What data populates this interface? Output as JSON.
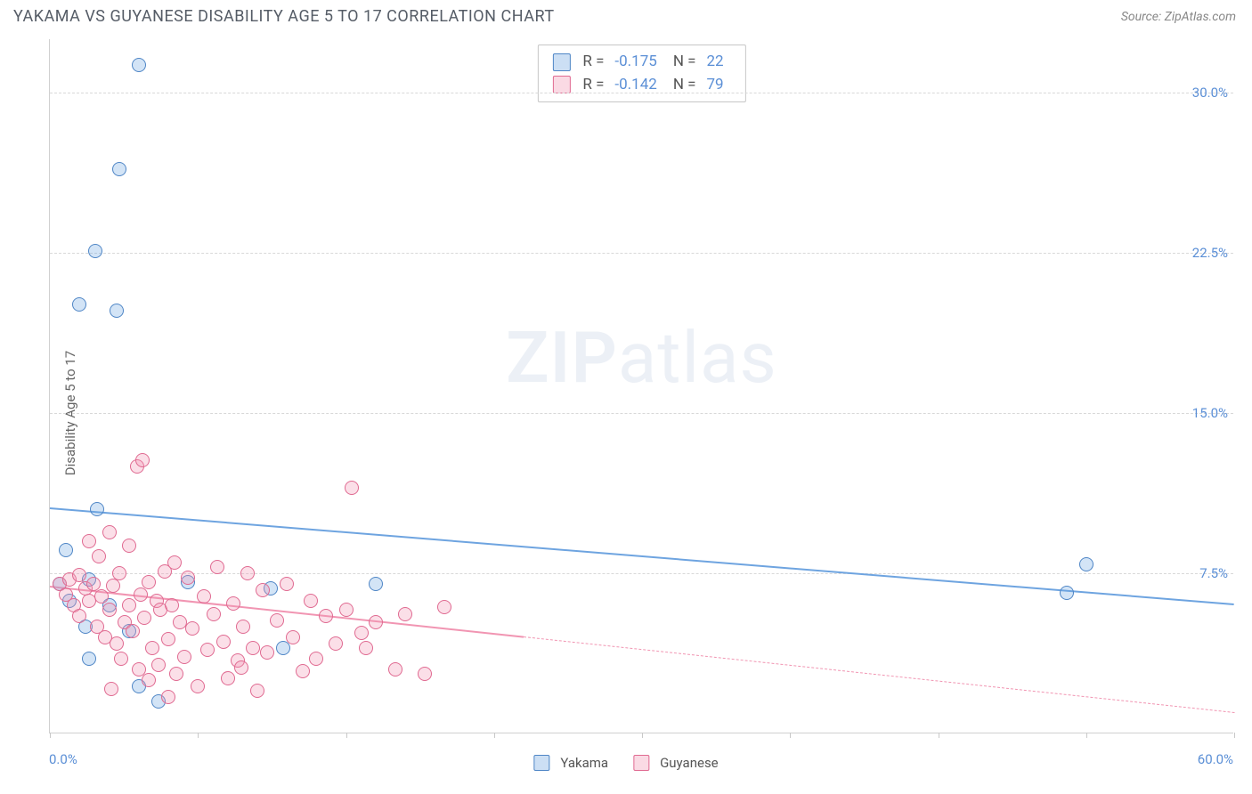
{
  "header": {
    "title": "YAKAMA VS GUYANESE DISABILITY AGE 5 TO 17 CORRELATION CHART",
    "source": "Source: ZipAtlas.com"
  },
  "watermark": {
    "bold": "ZIP",
    "rest": "atlas"
  },
  "chart": {
    "type": "scatter",
    "ylabel": "Disability Age 5 to 17",
    "xlim": [
      0,
      60
    ],
    "ylim": [
      0,
      32.5
    ],
    "x_min_label": "0.0%",
    "x_max_label": "60.0%",
    "y_ticks": [
      7.5,
      15.0,
      22.5,
      30.0
    ],
    "y_tick_labels": [
      "7.5%",
      "15.0%",
      "22.5%",
      "30.0%"
    ],
    "x_tick_marks": [
      0,
      7.5,
      15,
      22.5,
      30,
      37.5,
      45,
      52.5,
      60
    ],
    "grid_color": "#d8d8d8",
    "axis_color": "#d0d0d0",
    "tick_label_color": "#5b8fd6",
    "axis_zero_color": "#5b8fd6",
    "background_color": "#ffffff",
    "marker_radius": 8,
    "marker_border_width": 1.5,
    "marker_fill_opacity": 0.3,
    "series": [
      {
        "name": "Yakama",
        "color": "#6ea4e0",
        "border_color": "#4f86c6",
        "R": "-0.175",
        "N": "22",
        "trend": {
          "x1": 0,
          "y1": 10.6,
          "x2": 60,
          "y2": 6.1,
          "solid_until_x": 60,
          "width_solid": 2
        },
        "points": [
          [
            4.5,
            31.3
          ],
          [
            3.5,
            26.4
          ],
          [
            2.3,
            22.6
          ],
          [
            1.5,
            20.1
          ],
          [
            3.4,
            19.8
          ],
          [
            2.4,
            10.5
          ],
          [
            0.8,
            8.6
          ],
          [
            2.0,
            7.2
          ],
          [
            7.0,
            7.1
          ],
          [
            11.2,
            6.8
          ],
          [
            16.5,
            7.0
          ],
          [
            3.0,
            6.0
          ],
          [
            1.0,
            6.2
          ],
          [
            4.0,
            4.8
          ],
          [
            2.0,
            3.5
          ],
          [
            4.5,
            2.2
          ],
          [
            5.5,
            1.5
          ],
          [
            11.8,
            4.0
          ],
          [
            52.5,
            7.9
          ],
          [
            51.5,
            6.6
          ],
          [
            0.5,
            7.0
          ],
          [
            1.8,
            5.0
          ]
        ]
      },
      {
        "name": "Guyanese",
        "color": "#f195b2",
        "border_color": "#e06a91",
        "R": "-0.142",
        "N": "79",
        "trend": {
          "x1": 0,
          "y1": 6.9,
          "x2": 60,
          "y2": 1.0,
          "solid_until_x": 24,
          "width_solid": 2,
          "width_dash": 1
        },
        "points": [
          [
            0.5,
            7.0
          ],
          [
            0.8,
            6.5
          ],
          [
            1.0,
            7.2
          ],
          [
            1.2,
            6.0
          ],
          [
            1.5,
            7.4
          ],
          [
            1.5,
            5.5
          ],
          [
            1.8,
            6.8
          ],
          [
            2.0,
            6.2
          ],
          [
            2.0,
            9.0
          ],
          [
            2.2,
            7.0
          ],
          [
            2.4,
            5.0
          ],
          [
            2.5,
            8.3
          ],
          [
            2.6,
            6.4
          ],
          [
            2.8,
            4.5
          ],
          [
            3.0,
            5.8
          ],
          [
            3.0,
            9.4
          ],
          [
            3.2,
            6.9
          ],
          [
            3.4,
            4.2
          ],
          [
            3.5,
            7.5
          ],
          [
            3.6,
            3.5
          ],
          [
            3.8,
            5.2
          ],
          [
            4.0,
            6.0
          ],
          [
            4.0,
            8.8
          ],
          [
            4.2,
            4.8
          ],
          [
            4.4,
            12.5
          ],
          [
            4.5,
            3.0
          ],
          [
            4.6,
            6.5
          ],
          [
            4.7,
            12.8
          ],
          [
            4.8,
            5.4
          ],
          [
            5.0,
            7.1
          ],
          [
            5.0,
            2.5
          ],
          [
            5.2,
            4.0
          ],
          [
            5.4,
            6.2
          ],
          [
            5.5,
            3.2
          ],
          [
            5.6,
            5.8
          ],
          [
            5.8,
            7.6
          ],
          [
            6.0,
            4.4
          ],
          [
            6.0,
            1.7
          ],
          [
            6.2,
            6.0
          ],
          [
            6.4,
            2.8
          ],
          [
            6.6,
            5.2
          ],
          [
            6.8,
            3.6
          ],
          [
            7.0,
            7.3
          ],
          [
            7.2,
            4.9
          ],
          [
            7.5,
            2.2
          ],
          [
            7.8,
            6.4
          ],
          [
            8.0,
            3.9
          ],
          [
            8.3,
            5.6
          ],
          [
            8.5,
            7.8
          ],
          [
            8.8,
            4.3
          ],
          [
            9.0,
            2.6
          ],
          [
            9.3,
            6.1
          ],
          [
            9.5,
            3.4
          ],
          [
            9.8,
            5.0
          ],
          [
            10.0,
            7.5
          ],
          [
            10.3,
            4.0
          ],
          [
            10.5,
            2.0
          ],
          [
            10.8,
            6.7
          ],
          [
            11.0,
            3.8
          ],
          [
            11.5,
            5.3
          ],
          [
            12.0,
            7.0
          ],
          [
            12.3,
            4.5
          ],
          [
            12.8,
            2.9
          ],
          [
            13.2,
            6.2
          ],
          [
            13.5,
            3.5
          ],
          [
            14.0,
            5.5
          ],
          [
            14.5,
            4.2
          ],
          [
            15.0,
            5.8
          ],
          [
            15.3,
            11.5
          ],
          [
            16.0,
            4.0
          ],
          [
            16.5,
            5.2
          ],
          [
            17.5,
            3.0
          ],
          [
            18.0,
            5.6
          ],
          [
            19.0,
            2.8
          ],
          [
            20.0,
            5.9
          ],
          [
            15.8,
            4.7
          ],
          [
            9.7,
            3.1
          ],
          [
            6.3,
            8.0
          ],
          [
            3.1,
            2.1
          ]
        ]
      }
    ],
    "legend": {
      "items": [
        {
          "label": "Yakama",
          "swatch_fill": "rgba(110,164,224,0.35)",
          "swatch_border": "#4f86c6"
        },
        {
          "label": "Guyanese",
          "swatch_fill": "rgba(241,149,178,0.35)",
          "swatch_border": "#e06a91"
        }
      ]
    }
  }
}
